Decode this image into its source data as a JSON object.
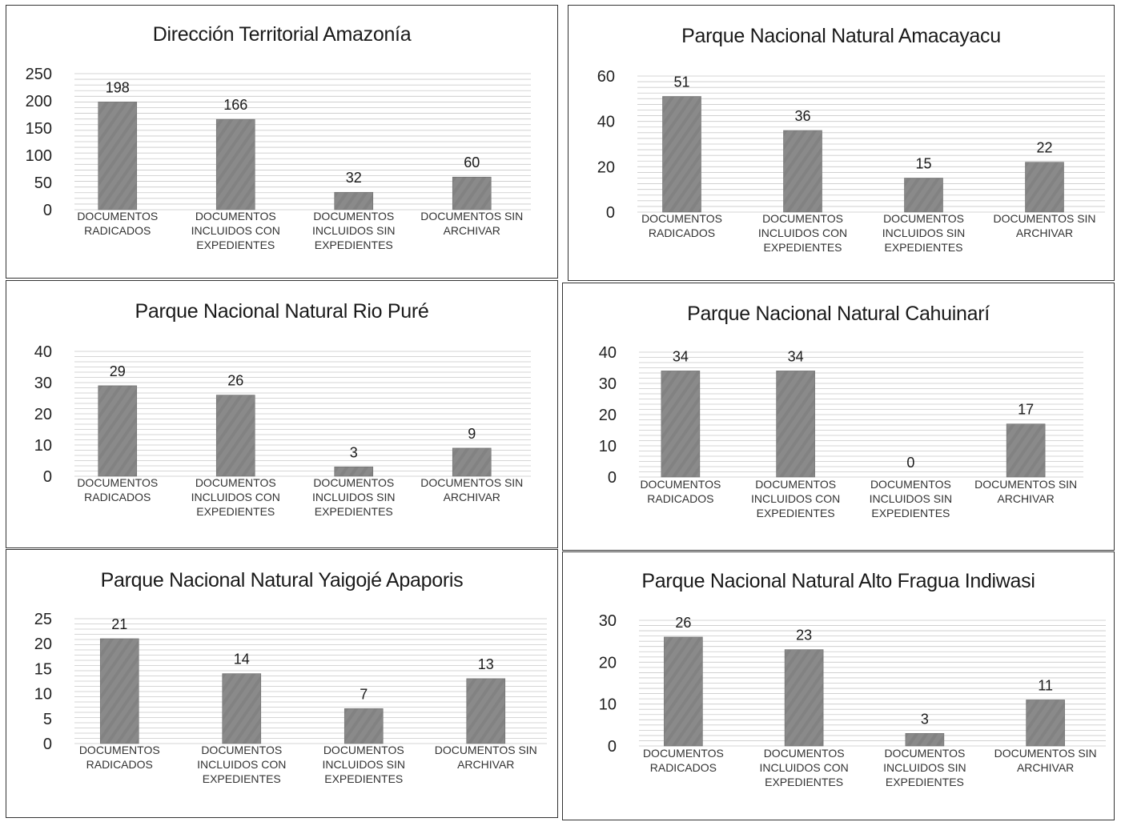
{
  "chart_data": [
    {
      "type": "bar",
      "title": "Dirección Territorial Amazonía",
      "categories": [
        [
          "DOCUMENTOS",
          "RADICADOS"
        ],
        [
          "DOCUMENTOS",
          "INCLUIDOS CON",
          "EXPEDIENTES"
        ],
        [
          "DOCUMENTOS",
          "INCLUIDOS SIN",
          "EXPEDIENTES"
        ],
        [
          "DOCUMENTOS SIN",
          "ARCHIVAR"
        ]
      ],
      "values": [
        198,
        166,
        32,
        60
      ],
      "ylim": [
        0,
        250
      ],
      "yticks": [
        "0",
        "50",
        "100",
        "150",
        "200",
        "250"
      ],
      "grid": true,
      "bar_color": "#8a8a8a"
    },
    {
      "type": "bar",
      "title": "Parque Nacional Natural Amacayacu",
      "categories": [
        [
          "DOCUMENTOS",
          "RADICADOS"
        ],
        [
          "DOCUMENTOS",
          "INCLUIDOS CON",
          "EXPEDIENTES"
        ],
        [
          "DOCUMENTOS",
          "INCLUIDOS SIN",
          "EXPEDIENTES"
        ],
        [
          "DOCUMENTOS SIN",
          "ARCHIVAR"
        ]
      ],
      "values": [
        51,
        36,
        15,
        22
      ],
      "ylim": [
        0,
        60
      ],
      "yticks": [
        "0",
        "20",
        "40",
        "60"
      ],
      "grid": true,
      "bar_color": "#8a8a8a"
    },
    {
      "type": "bar",
      "title": "Parque Nacional Natural Rio Puré",
      "categories": [
        [
          "DOCUMENTOS",
          "RADICADOS"
        ],
        [
          "DOCUMENTOS",
          "INCLUIDOS CON",
          "EXPEDIENTES"
        ],
        [
          "DOCUMENTOS",
          "INCLUIDOS SIN",
          "EXPEDIENTES"
        ],
        [
          "DOCUMENTOS SIN",
          "ARCHIVAR"
        ]
      ],
      "values": [
        29,
        26,
        3,
        9
      ],
      "ylim": [
        0,
        40
      ],
      "yticks": [
        "0",
        "10",
        "20",
        "30",
        "40"
      ],
      "grid": true,
      "bar_color": "#8a8a8a"
    },
    {
      "type": "bar",
      "title": "Parque Nacional Natural Cahuinarí",
      "categories": [
        [
          "DOCUMENTOS",
          "RADICADOS"
        ],
        [
          "DOCUMENTOS",
          "INCLUIDOS CON",
          "EXPEDIENTES"
        ],
        [
          "DOCUMENTOS",
          "INCLUIDOS SIN",
          "EXPEDIENTES"
        ],
        [
          "DOCUMENTOS SIN",
          "ARCHIVAR"
        ]
      ],
      "values": [
        34,
        34,
        0,
        17
      ],
      "ylim": [
        0,
        40
      ],
      "yticks": [
        "0",
        "10",
        "20",
        "30",
        "40"
      ],
      "grid": true,
      "bar_color": "#8a8a8a"
    },
    {
      "type": "bar",
      "title": "Parque Nacional Natural Yaigojé Apaporis",
      "categories": [
        [
          "DOCUMENTOS",
          "RADICADOS"
        ],
        [
          "DOCUMENTOS",
          "INCLUIDOS CON",
          "EXPEDIENTES"
        ],
        [
          "DOCUMENTOS",
          "INCLUIDOS SIN",
          "EXPEDIENTES"
        ],
        [
          "DOCUMENTOS SIN",
          "ARCHIVAR"
        ]
      ],
      "values": [
        21,
        14,
        7,
        13
      ],
      "ylim": [
        0,
        25
      ],
      "yticks": [
        "0",
        "5",
        "10",
        "15",
        "20",
        "25"
      ],
      "grid": true,
      "bar_color": "#8a8a8a"
    },
    {
      "type": "bar",
      "title": "Parque Nacional Natural Alto Fragua Indiwasi",
      "categories": [
        [
          "DOCUMENTOS",
          "RADICADOS"
        ],
        [
          "DOCUMENTOS",
          "INCLUIDOS CON",
          "EXPEDIENTES"
        ],
        [
          "DOCUMENTOS",
          "INCLUIDOS SIN",
          "EXPEDIENTES"
        ],
        [
          "DOCUMENTOS SIN",
          "ARCHIVAR"
        ]
      ],
      "values": [
        26,
        23,
        3,
        11
      ],
      "ylim": [
        0,
        30
      ],
      "yticks": [
        "0",
        "10",
        "20",
        "30"
      ],
      "grid": true,
      "bar_color": "#8a8a8a"
    }
  ]
}
